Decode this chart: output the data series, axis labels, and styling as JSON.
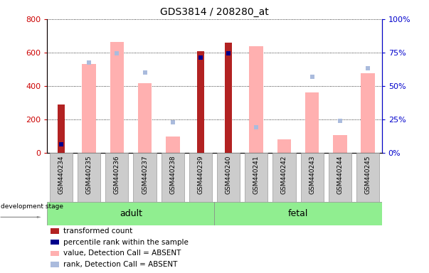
{
  "title": "GDS3814 / 208280_at",
  "samples": [
    "GSM440234",
    "GSM440235",
    "GSM440236",
    "GSM440237",
    "GSM440238",
    "GSM440239",
    "GSM440240",
    "GSM440241",
    "GSM440242",
    "GSM440243",
    "GSM440244",
    "GSM440245"
  ],
  "transformed_count": [
    290,
    null,
    null,
    null,
    null,
    610,
    660,
    null,
    null,
    null,
    null,
    null
  ],
  "percentile_rank_val": [
    50,
    null,
    null,
    null,
    null,
    570,
    595,
    null,
    null,
    null,
    null,
    null
  ],
  "absent_value": [
    null,
    530,
    665,
    415,
    100,
    null,
    null,
    640,
    80,
    360,
    107,
    475
  ],
  "absent_rank": [
    null,
    540,
    595,
    480,
    185,
    null,
    null,
    155,
    null,
    455,
    190,
    505
  ],
  "left_ylim": [
    0,
    800
  ],
  "right_ylim": [
    0,
    100
  ],
  "left_yticks": [
    0,
    200,
    400,
    600,
    800
  ],
  "right_yticks": [
    0,
    25,
    50,
    75,
    100
  ],
  "right_yticklabels": [
    "0%",
    "25%",
    "50%",
    "75%",
    "100%"
  ],
  "transformed_color": "#B22222",
  "percentile_color": "#00008B",
  "absent_value_color": "#FFB0B0",
  "absent_rank_color": "#AABBDD",
  "adult_color": "#90EE90",
  "fetal_color": "#90EE90",
  "tick_label_color_left": "#CC0000",
  "tick_label_color_right": "#0000CC",
  "gsm_box_color": "#CCCCCC",
  "legend_items": [
    [
      "#B22222",
      "transformed count"
    ],
    [
      "#00008B",
      "percentile rank within the sample"
    ],
    [
      "#FFB0B0",
      "value, Detection Call = ABSENT"
    ],
    [
      "#AABBDD",
      "rank, Detection Call = ABSENT"
    ]
  ]
}
